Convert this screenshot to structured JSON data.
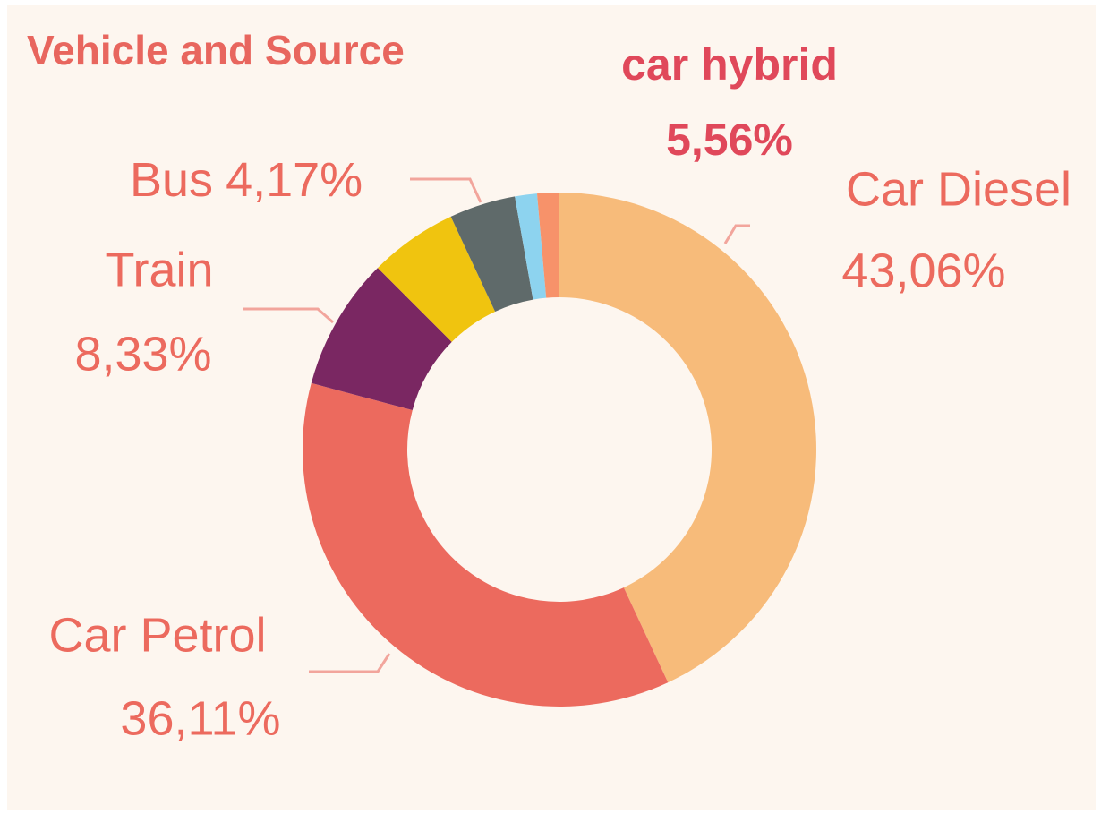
{
  "chart_data": {
    "type": "donut",
    "title": "Vehicle and Source",
    "categories": [
      "Car Diesel",
      "Car Petrol",
      "Train",
      "car hybrid",
      "Bus",
      null,
      null
    ],
    "values": [
      43.06,
      36.11,
      8.33,
      5.56,
      4.17,
      1.39,
      1.39
    ],
    "value_labels": [
      "43,06%",
      "36,11%",
      "8,33%",
      "5,56%",
      "4,17%",
      null,
      null
    ],
    "colors": [
      "#f7bb7a",
      "#ec6a5e",
      "#7a2762",
      "#f0c40f",
      "#5f6a6a",
      "#8dd3ef",
      "#f7926a"
    ]
  }
}
